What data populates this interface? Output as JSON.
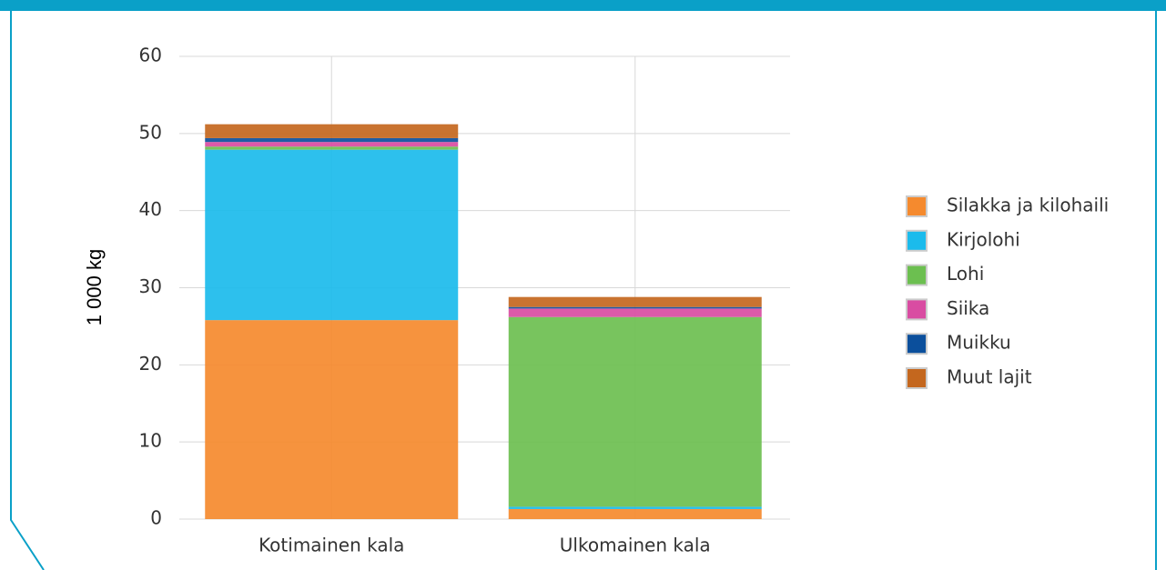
{
  "chart_data": {
    "type": "bar",
    "stacked": true,
    "y_label": "1 000 kg",
    "categories": [
      "Kotimainen kala",
      "Ulkomainen kala"
    ],
    "series": [
      {
        "name": "Silakka ja kilohaili",
        "color": "#f58a2e",
        "values": [
          25.8,
          1.3
        ]
      },
      {
        "name": "Kirjolohi",
        "color": "#1bbbec",
        "values": [
          22.1,
          0.3
        ]
      },
      {
        "name": "Lohi",
        "color": "#6cbf50",
        "values": [
          0.4,
          24.6
        ]
      },
      {
        "name": "Siika",
        "color": "#d94ca2",
        "values": [
          0.6,
          1.1
        ]
      },
      {
        "name": "Muikku",
        "color": "#0b4f9c",
        "values": [
          0.5,
          0.2
        ]
      },
      {
        "name": "Muut lajit",
        "color": "#c4671e",
        "values": [
          1.8,
          1.3
        ]
      }
    ],
    "ylim": [
      0,
      60
    ],
    "yticks": [
      0,
      10,
      20,
      30,
      40,
      50,
      60
    ],
    "grid": true,
    "legend": "right"
  }
}
